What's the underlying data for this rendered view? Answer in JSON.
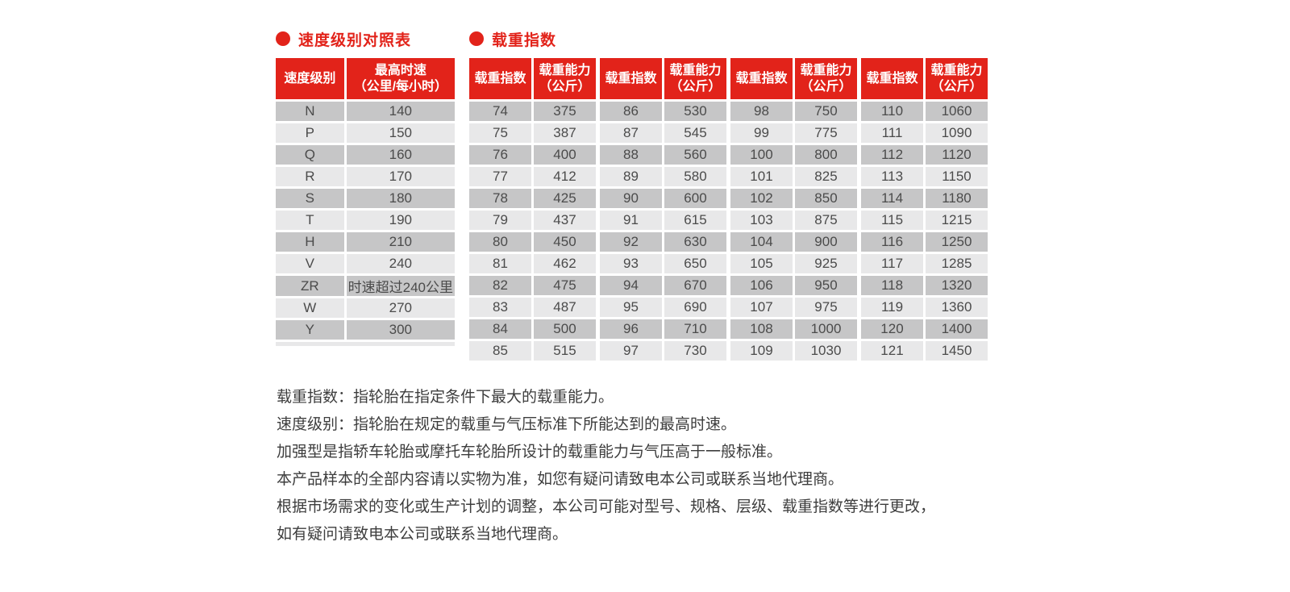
{
  "colors": {
    "red": "#e2231a",
    "row_dark": "#c6c6c7",
    "row_light": "#e8e8e9",
    "cell_text": "#4b4b4b",
    "footer_text": "#3d3d3d"
  },
  "speed_table": {
    "title": "速度级别对照表",
    "header_col1": "速度级别",
    "header_col2_line1": "最高时速",
    "header_col2_line2": "（公里/每小时）",
    "rows": [
      [
        "N",
        "140"
      ],
      [
        "P",
        "150"
      ],
      [
        "Q",
        "160"
      ],
      [
        "R",
        "170"
      ],
      [
        "S",
        "180"
      ],
      [
        "T",
        "190"
      ],
      [
        "H",
        "210"
      ],
      [
        "V",
        "240"
      ],
      [
        "ZR",
        "时速超过240公里"
      ],
      [
        "W",
        "270"
      ],
      [
        "Y",
        "300"
      ]
    ]
  },
  "load_table": {
    "title": "载重指数",
    "header_index": "载重指数",
    "header_capacity_line1": "载重能力",
    "header_capacity_line2": "（公斤）",
    "groups": [
      [
        [
          "74",
          "375"
        ],
        [
          "75",
          "387"
        ],
        [
          "76",
          "400"
        ],
        [
          "77",
          "412"
        ],
        [
          "78",
          "425"
        ],
        [
          "79",
          "437"
        ],
        [
          "80",
          "450"
        ],
        [
          "81",
          "462"
        ],
        [
          "82",
          "475"
        ],
        [
          "83",
          "487"
        ],
        [
          "84",
          "500"
        ],
        [
          "85",
          "515"
        ]
      ],
      [
        [
          "86",
          "530"
        ],
        [
          "87",
          "545"
        ],
        [
          "88",
          "560"
        ],
        [
          "89",
          "580"
        ],
        [
          "90",
          "600"
        ],
        [
          "91",
          "615"
        ],
        [
          "92",
          "630"
        ],
        [
          "93",
          "650"
        ],
        [
          "94",
          "670"
        ],
        [
          "95",
          "690"
        ],
        [
          "96",
          "710"
        ],
        [
          "97",
          "730"
        ]
      ],
      [
        [
          "98",
          "750"
        ],
        [
          "99",
          "775"
        ],
        [
          "100",
          "800"
        ],
        [
          "101",
          "825"
        ],
        [
          "102",
          "850"
        ],
        [
          "103",
          "875"
        ],
        [
          "104",
          "900"
        ],
        [
          "105",
          "925"
        ],
        [
          "106",
          "950"
        ],
        [
          "107",
          "975"
        ],
        [
          "108",
          "1000"
        ],
        [
          "109",
          "1030"
        ]
      ],
      [
        [
          "110",
          "1060"
        ],
        [
          "111",
          "1090"
        ],
        [
          "112",
          "1120"
        ],
        [
          "113",
          "1150"
        ],
        [
          "114",
          "1180"
        ],
        [
          "115",
          "1215"
        ],
        [
          "116",
          "1250"
        ],
        [
          "117",
          "1285"
        ],
        [
          "118",
          "1320"
        ],
        [
          "119",
          "1360"
        ],
        [
          "120",
          "1400"
        ],
        [
          "121",
          "1450"
        ]
      ]
    ]
  },
  "notes": [
    "载重指数：指轮胎在指定条件下最大的载重能力。",
    "速度级别：指轮胎在规定的载重与气压标准下所能达到的最高时速。",
    "加强型是指轿车轮胎或摩托车轮胎所设计的载重能力与气压高于一般标准。",
    "本产品样本的全部内容请以实物为准，如您有疑问请致电本公司或联系当地代理商。",
    "根据市场需求的变化或生产计划的调整，本公司可能对型号、规格、层级、载重指数等进行更改，",
    "如有疑问请致电本公司或联系当地代理商。"
  ]
}
